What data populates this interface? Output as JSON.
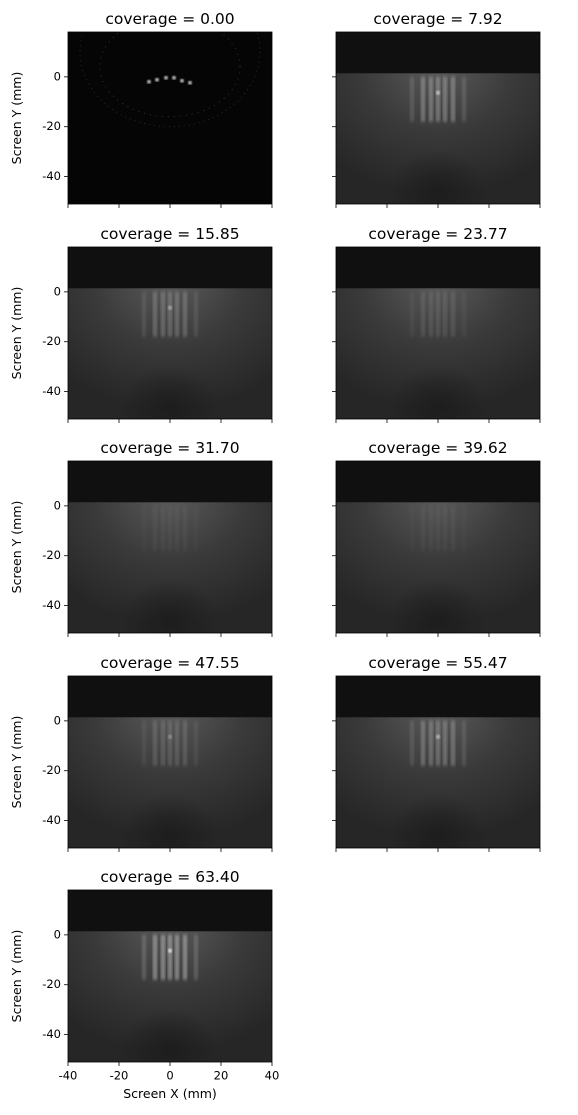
{
  "chart_data": [
    {
      "type": "image",
      "title": "coverage = 0.00",
      "ylabel": "Screen Y (mm)",
      "xlim": [
        -40,
        40
      ],
      "ylim": [
        -51,
        18
      ],
      "xticks": [
        -40,
        -20,
        0,
        20,
        40
      ],
      "yticks": [
        -40,
        -20,
        0
      ]
    },
    {
      "type": "image",
      "title": "coverage = 7.92",
      "xlim": [
        -40,
        40
      ],
      "ylim": [
        -51,
        18
      ],
      "xticks": [
        -40,
        -20,
        0,
        20,
        40
      ],
      "yticks": [
        -40,
        -20,
        0
      ]
    },
    {
      "type": "image",
      "title": "coverage = 15.85",
      "ylabel": "Screen Y (mm)",
      "xlim": [
        -40,
        40
      ],
      "ylim": [
        -51,
        18
      ],
      "xticks": [
        -40,
        -20,
        0,
        20,
        40
      ],
      "yticks": [
        -40,
        -20,
        0
      ]
    },
    {
      "type": "image",
      "title": "coverage = 23.77",
      "xlim": [
        -40,
        40
      ],
      "ylim": [
        -51,
        18
      ],
      "xticks": [
        -40,
        -20,
        0,
        20,
        40
      ],
      "yticks": [
        -40,
        -20,
        0
      ]
    },
    {
      "type": "image",
      "title": "coverage = 31.70",
      "ylabel": "Screen Y (mm)",
      "xlim": [
        -40,
        40
      ],
      "ylim": [
        -51,
        18
      ],
      "xticks": [
        -40,
        -20,
        0,
        20,
        40
      ],
      "yticks": [
        -40,
        -20,
        0
      ]
    },
    {
      "type": "image",
      "title": "coverage = 39.62",
      "xlim": [
        -40,
        40
      ],
      "ylim": [
        -51,
        18
      ],
      "xticks": [
        -40,
        -20,
        0,
        20,
        40
      ],
      "yticks": [
        -40,
        -20,
        0
      ]
    },
    {
      "type": "image",
      "title": "coverage = 47.55",
      "ylabel": "Screen Y (mm)",
      "xlim": [
        -40,
        40
      ],
      "ylim": [
        -51,
        18
      ],
      "xticks": [
        -40,
        -20,
        0,
        20,
        40
      ],
      "yticks": [
        -40,
        -20,
        0
      ]
    },
    {
      "type": "image",
      "title": "coverage = 55.47",
      "xlim": [
        -40,
        40
      ],
      "ylim": [
        -51,
        18
      ],
      "xticks": [
        -40,
        -20,
        0,
        20,
        40
      ],
      "yticks": [
        -40,
        -20,
        0
      ]
    },
    {
      "type": "image",
      "title": "coverage = 63.40",
      "ylabel": "Screen Y (mm)",
      "xlabel": "Screen X (mm)",
      "xlim": [
        -40,
        40
      ],
      "ylim": [
        -51,
        18
      ],
      "xticks": [
        -40,
        -20,
        0,
        20,
        40
      ],
      "yticks": [
        -40,
        -20,
        0
      ]
    }
  ]
}
